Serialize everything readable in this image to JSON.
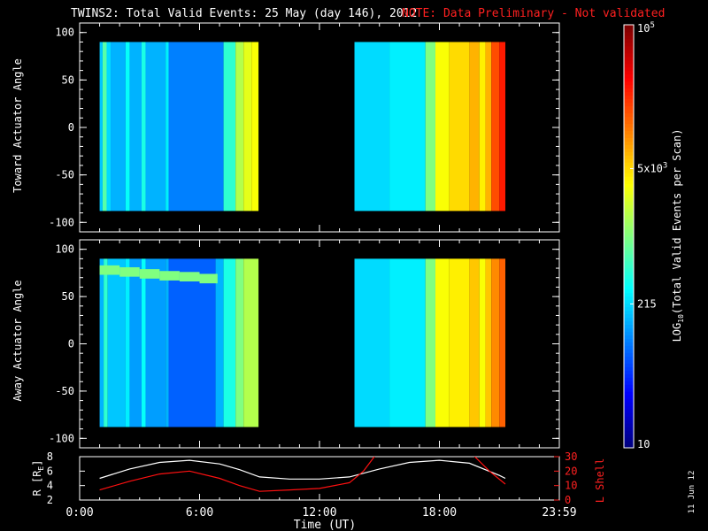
{
  "title": "TWINS2: Total Valid Events: 25 May (day 146), 2012",
  "note": "NOTE: Data Preliminary - Not validated",
  "date_stamp": "11 Jun 12",
  "colors": {
    "note": "#ff2020",
    "r_line": "#ffffff",
    "lshell_line": "#ff1010"
  },
  "chart_data": [
    {
      "type": "heatmap",
      "panel": "toward",
      "ylabel": "Toward Actuator Angle",
      "ylim": [
        -110,
        110
      ],
      "yticks": [
        100,
        50,
        0,
        -50,
        -100
      ],
      "angle_range": [
        -88,
        90
      ],
      "data_intervals_hours": [
        [
          1.0,
          8.95
        ],
        [
          13.75,
          21.3
        ]
      ],
      "column_levels": [
        [
          1.0,
          0.32
        ],
        [
          1.15,
          0.46
        ],
        [
          1.35,
          0.34
        ],
        [
          1.55,
          0.3
        ],
        [
          2.3,
          0.38
        ],
        [
          2.5,
          0.3
        ],
        [
          3.1,
          0.4
        ],
        [
          3.3,
          0.3
        ],
        [
          4.3,
          0.36
        ],
        [
          4.45,
          0.25
        ],
        [
          7.2,
          0.42
        ],
        [
          7.8,
          0.55
        ],
        [
          8.2,
          0.6
        ],
        [
          8.6,
          0.62
        ],
        [
          13.75,
          0.34
        ],
        [
          15.5,
          0.36
        ],
        [
          17.3,
          0.5
        ],
        [
          17.8,
          0.62
        ],
        [
          18.5,
          0.66
        ],
        [
          19.5,
          0.7
        ],
        [
          20.0,
          0.64
        ],
        [
          20.3,
          0.7
        ],
        [
          20.6,
          0.8
        ],
        [
          21.0,
          0.85
        ]
      ]
    },
    {
      "type": "heatmap",
      "panel": "away",
      "ylabel": "Away Actuator Angle",
      "ylim": [
        -110,
        110
      ],
      "yticks": [
        100,
        50,
        0,
        -50,
        -100
      ],
      "angle_range": [
        -88,
        90
      ],
      "data_intervals_hours": [
        [
          1.0,
          8.95
        ],
        [
          13.75,
          21.3
        ]
      ],
      "column_levels": [
        [
          1.0,
          0.3
        ],
        [
          1.2,
          0.42
        ],
        [
          1.4,
          0.32
        ],
        [
          2.3,
          0.36
        ],
        [
          2.5,
          0.28
        ],
        [
          3.1,
          0.38
        ],
        [
          3.3,
          0.28
        ],
        [
          4.3,
          0.3
        ],
        [
          4.45,
          0.22
        ],
        [
          6.8,
          0.3
        ],
        [
          7.2,
          0.4
        ],
        [
          7.8,
          0.5
        ],
        [
          8.2,
          0.55
        ],
        [
          13.75,
          0.34
        ],
        [
          15.5,
          0.36
        ],
        [
          17.3,
          0.5
        ],
        [
          17.8,
          0.62
        ],
        [
          18.5,
          0.64
        ],
        [
          19.5,
          0.68
        ],
        [
          20.0,
          0.62
        ],
        [
          20.3,
          0.68
        ],
        [
          20.6,
          0.74
        ],
        [
          21.0,
          0.78
        ]
      ],
      "band": [
        [
          1.0,
          78
        ],
        [
          2.0,
          76
        ],
        [
          3.0,
          74
        ],
        [
          4.0,
          72
        ],
        [
          5.0,
          71
        ],
        [
          6.0,
          69
        ],
        [
          6.9,
          68
        ]
      ]
    },
    {
      "type": "line",
      "panel": "orbit",
      "xlabel": "Time (UT)",
      "xticks": [
        "0:00",
        "6:00",
        "12:00",
        "18:00",
        "23:59"
      ],
      "xlim": [
        0,
        24
      ],
      "left_axis": {
        "label": "R [R",
        "label_sub": "E",
        "label_end": "]",
        "ylim": [
          2,
          8
        ],
        "ticks": [
          "2",
          "4",
          "6",
          "8"
        ]
      },
      "right_axis": {
        "label": "L Shell",
        "ylim": [
          0,
          30
        ],
        "ticks": [
          "0",
          "10",
          "20",
          "30"
        ]
      },
      "series": [
        {
          "axis": "left",
          "x": [
            1.0,
            2.5,
            4.0,
            5.5,
            7.0,
            8.0,
            9.0,
            10.5,
            12.0,
            13.5,
            15.0,
            16.5,
            18.0,
            19.5,
            21.0,
            21.3
          ],
          "y": [
            5.0,
            6.3,
            7.2,
            7.5,
            7.0,
            6.2,
            5.2,
            4.9,
            4.9,
            5.2,
            6.3,
            7.2,
            7.5,
            7.1,
            5.4,
            5.0
          ]
        },
        {
          "axis": "right",
          "x": [
            1.0,
            2.5,
            4.0,
            5.5,
            7.0,
            8.0,
            9.0,
            10.5,
            12.0,
            13.5,
            14.2,
            14.8,
            19.7,
            20.5,
            21.3
          ],
          "y": [
            7,
            13,
            18,
            20,
            15,
            10,
            6,
            7,
            8,
            12,
            20,
            31,
            31,
            20,
            11
          ]
        }
      ]
    },
    {
      "type": "colorbar",
      "label": "LOG",
      "label_sub": "10",
      "label_end": "(Total Valid Events per Scan)",
      "tick_labels": [
        {
          "base": "10",
          "exp": "5",
          "level": 1.0
        },
        {
          "base": "5x10",
          "exp": "3",
          "level": 0.66
        },
        {
          "base": "215",
          "exp": "",
          "level": 0.34
        },
        {
          "base": "10",
          "exp": "",
          "level": 0.0
        }
      ]
    }
  ]
}
